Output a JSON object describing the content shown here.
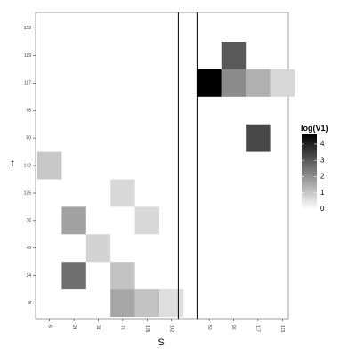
{
  "chart_data": {
    "type": "heatmap",
    "xlabel": "S",
    "ylabel": "t",
    "x_categories": [
      "6",
      "24",
      "31",
      "76",
      "105",
      "142",
      "50",
      "96",
      "117",
      "123"
    ],
    "y_categories": [
      "8",
      "24",
      "40",
      "76",
      "135",
      "142",
      "50",
      "98",
      "117",
      "119",
      "123"
    ],
    "value_name": "log(V1)",
    "color_range": [
      0,
      4.6
    ],
    "colors": {
      "low": "#ffffff",
      "high": "#000000",
      "panel_border": "#888888",
      "divider": "#000000"
    },
    "legend": {
      "title": "log(V1)",
      "ticks": [
        0,
        1,
        2,
        3,
        4
      ],
      "position": "right"
    },
    "grid": false,
    "cells": [
      {
        "x": "76",
        "y": "8",
        "value": 1.6
      },
      {
        "x": "105",
        "y": "8",
        "value": 1.1
      },
      {
        "x": "142",
        "y": "8",
        "value": 0.6
      },
      {
        "x": "24",
        "y": "24",
        "value": 2.6
      },
      {
        "x": "76",
        "y": "24",
        "value": 1.1
      },
      {
        "x": "31",
        "y": "40",
        "value": 0.8
      },
      {
        "x": "24",
        "y": "76",
        "value": 1.7
      },
      {
        "x": "105",
        "y": "76",
        "value": 0.7
      },
      {
        "x": "76",
        "y": "135",
        "value": 0.7
      },
      {
        "x": "6",
        "y": "142",
        "value": 1.0
      },
      {
        "x": "117",
        "y": "50",
        "value": 3.3
      },
      {
        "x": "50",
        "y": "117",
        "value": 4.6
      },
      {
        "x": "96",
        "y": "117",
        "value": 2.1
      },
      {
        "x": "117",
        "y": "117",
        "value": 1.4
      },
      {
        "x": "123",
        "y": "117",
        "value": 0.7
      },
      {
        "x": "96",
        "y": "119",
        "value": 3.0
      }
    ],
    "dividers_after_x": [
      "142"
    ]
  }
}
